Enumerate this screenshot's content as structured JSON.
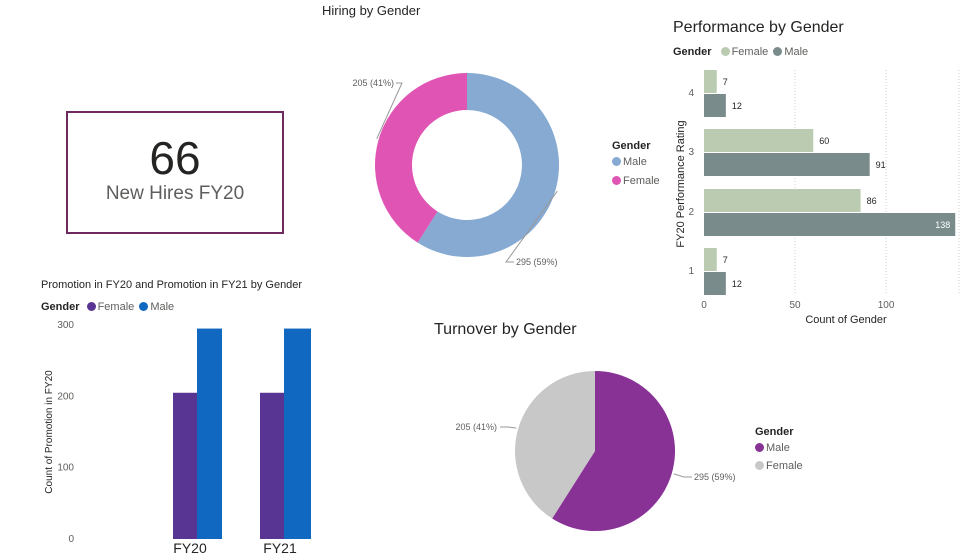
{
  "kpi_card": {
    "value": "66",
    "label": "New Hires FY20"
  },
  "colors": {
    "hiring_male": "#86aad1",
    "hiring_female": "#e054b4",
    "perf_female": "#bacbb2",
    "perf_male": "#798b8a",
    "promo_female": "#583593",
    "promo_male": "#1168c1",
    "turn_male": "#883296",
    "turn_female": "#c8c8c8",
    "card_border": "#6e2a5f"
  },
  "chart_data": [
    {
      "id": "hiring",
      "type": "pie",
      "variant": "donut",
      "title": "Hiring by Gender",
      "legend_title": "Gender",
      "legend_position": "right",
      "slices": [
        {
          "label": "Male",
          "value": 295,
          "data_label": "295 (59%)"
        },
        {
          "label": "Female",
          "value": 205,
          "data_label": "205 (41%)"
        }
      ]
    },
    {
      "id": "performance",
      "type": "bar",
      "orientation": "horizontal",
      "title": "Performance by Gender",
      "legend_title": "Gender",
      "legend_position": "top-left",
      "ylabel": "FY20 Performance Rating",
      "xlabel": "Count of Gender",
      "categories": [
        "4",
        "3",
        "2",
        "1"
      ],
      "xlim": [
        0,
        145
      ],
      "xticks": [
        0,
        50,
        100
      ],
      "grid": true,
      "series": [
        {
          "name": "Female",
          "values": [
            7,
            60,
            86,
            7
          ]
        },
        {
          "name": "Male",
          "values": [
            12,
            91,
            138,
            12
          ]
        }
      ]
    },
    {
      "id": "promotion",
      "type": "bar",
      "title": "Promotion in FY20 and Promotion in FY21 by Gender",
      "legend_title": "Gender",
      "legend_position": "top-left",
      "ylabel": "Count of Promotion in FY20",
      "categories": [
        "FY20",
        "FY21"
      ],
      "ylim": [
        0,
        300
      ],
      "yticks": [
        0,
        100,
        200,
        300
      ],
      "series": [
        {
          "name": "Female",
          "values": [
            205,
            205
          ]
        },
        {
          "name": "Male",
          "values": [
            295,
            295
          ]
        }
      ]
    },
    {
      "id": "turnover",
      "type": "pie",
      "title": "Turnover by Gender",
      "legend_title": "Gender",
      "legend_position": "right",
      "slices": [
        {
          "label": "Male",
          "value": 295,
          "data_label": "295 (59%)"
        },
        {
          "label": "Female",
          "value": 205,
          "data_label": "205 (41%)"
        }
      ]
    }
  ]
}
